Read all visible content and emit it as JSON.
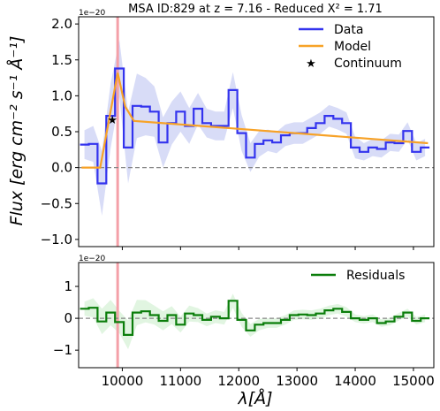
{
  "chart_data": [
    {
      "type": "line",
      "title": "MSA ID:829 at z = 7.16 - Reduced X² = 1.71",
      "ylabel": "Flux [erg cm⁻² s⁻¹ Å⁻¹]",
      "offset_text": "1e−20",
      "xlim": [
        9250,
        15350
      ],
      "ylim": [
        -1.1,
        2.1
      ],
      "yticks": [
        "−1.0",
        "−0.5",
        "0.0",
        "0.5",
        "1.0",
        "1.5",
        "2.0"
      ],
      "grid": false,
      "legend": {
        "location": "top-right",
        "entries": [
          "Data",
          "Model",
          "Continuum"
        ]
      },
      "vline": {
        "x": 9920,
        "color": "#f4a0a8"
      },
      "hline": {
        "y": 0,
        "style": "dashed",
        "color": "#888888"
      },
      "series": [
        {
          "name": "Data",
          "style": "steps-mid",
          "color": "#3333ee",
          "x": [
            9350,
            9500,
            9650,
            9800,
            9950,
            10100,
            10250,
            10400,
            10550,
            10700,
            10850,
            11000,
            11150,
            11300,
            11450,
            11600,
            11750,
            11900,
            12050,
            12200,
            12350,
            12500,
            12650,
            12800,
            12950,
            13100,
            13250,
            13400,
            13550,
            13700,
            13850,
            14000,
            14150,
            14300,
            14450,
            14600,
            14750,
            14900,
            15050,
            15200
          ],
          "y": [
            0.32,
            0.33,
            -0.22,
            0.72,
            1.38,
            0.28,
            0.86,
            0.85,
            0.78,
            0.35,
            0.62,
            0.78,
            0.58,
            0.82,
            0.62,
            0.58,
            0.58,
            1.08,
            0.48,
            0.14,
            0.33,
            0.38,
            0.35,
            0.45,
            0.48,
            0.48,
            0.55,
            0.62,
            0.72,
            0.68,
            0.62,
            0.28,
            0.22,
            0.28,
            0.26,
            0.35,
            0.34,
            0.51,
            0.22,
            0.28
          ],
          "error_band": [
            0.2,
            0.25,
            0.45,
            0.45,
            0.4,
            0.5,
            0.45,
            0.4,
            0.35,
            0.35,
            0.3,
            0.28,
            0.25,
            0.22,
            0.2,
            0.2,
            0.2,
            0.25,
            0.25,
            0.2,
            0.18,
            0.15,
            0.15,
            0.15,
            0.15,
            0.15,
            0.15,
            0.15,
            0.15,
            0.15,
            0.15,
            0.15,
            0.12,
            0.12,
            0.12,
            0.12,
            0.12,
            0.12,
            0.12,
            0.12
          ],
          "band_color": "#b8bff0"
        },
        {
          "name": "Model",
          "style": "line",
          "color": "#f7a227",
          "x": [
            9300,
            9620,
            9920,
            10050,
            10200,
            15250
          ],
          "y": [
            0.0,
            0.0,
            1.32,
            0.85,
            0.65,
            0.34
          ]
        },
        {
          "name": "Continuum",
          "style": "marker-star",
          "color": "#000000",
          "x": [
            9830
          ],
          "y": [
            0.67
          ]
        }
      ]
    },
    {
      "type": "line",
      "offset_text": "1e−20",
      "xlabel": "λ[Å]",
      "xlim": [
        9250,
        15350
      ],
      "ylim": [
        -1.55,
        1.75
      ],
      "xticks": [
        10000,
        11000,
        12000,
        13000,
        14000,
        15000
      ],
      "yticks": [
        "−1",
        "0",
        "1"
      ],
      "grid": false,
      "legend": {
        "location": "top-right",
        "entries": [
          "Residuals"
        ]
      },
      "vline": {
        "x": 9920,
        "color": "#f4a0a8"
      },
      "hline": {
        "y": 0,
        "style": "dashed",
        "color": "#888888"
      },
      "series": [
        {
          "name": "Residuals",
          "style": "steps-mid",
          "color": "#0a7d0a",
          "x": [
            9350,
            9500,
            9650,
            9800,
            9950,
            10100,
            10250,
            10400,
            10550,
            10700,
            10850,
            11000,
            11150,
            11300,
            11450,
            11600,
            11750,
            11900,
            12050,
            12200,
            12350,
            12500,
            12650,
            12800,
            12950,
            13100,
            13250,
            13400,
            13550,
            13700,
            13850,
            14000,
            14150,
            14300,
            14450,
            14600,
            14750,
            14900,
            15050,
            15200
          ],
          "y": [
            0.3,
            0.33,
            -0.1,
            0.18,
            -0.12,
            -0.52,
            0.18,
            0.22,
            0.1,
            -0.08,
            0.1,
            -0.2,
            0.15,
            0.1,
            -0.05,
            0.05,
            0.0,
            0.55,
            -0.05,
            -0.38,
            -0.2,
            -0.15,
            -0.15,
            -0.05,
            0.1,
            0.12,
            0.1,
            0.15,
            0.25,
            0.3,
            0.2,
            0.0,
            -0.05,
            0.0,
            -0.15,
            -0.1,
            0.05,
            0.18,
            -0.08,
            0.0
          ],
          "error_band": [
            0.22,
            0.3,
            0.4,
            0.4,
            0.35,
            0.45,
            0.4,
            0.35,
            0.3,
            0.3,
            0.28,
            0.25,
            0.25,
            0.22,
            0.2,
            0.2,
            0.2,
            0.22,
            0.22,
            0.2,
            0.18,
            0.15,
            0.15,
            0.15,
            0.15,
            0.15,
            0.15,
            0.15,
            0.15,
            0.15,
            0.15,
            0.12,
            0.12,
            0.12,
            0.12,
            0.12,
            0.12,
            0.12,
            0.12,
            0.12
          ],
          "band_color": "#c8ecc8"
        }
      ]
    }
  ]
}
